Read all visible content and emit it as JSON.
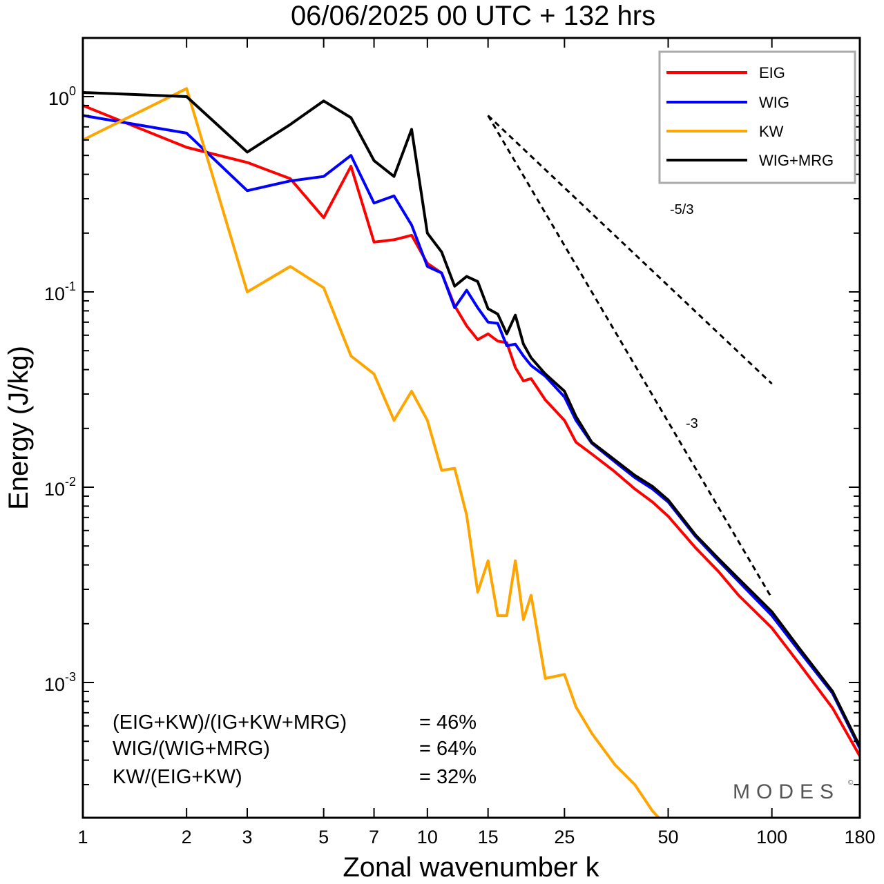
{
  "chart_data": {
    "type": "line",
    "title": "06/06/2025  00 UTC  + 132 hrs",
    "xlabel": "Zonal wavenumber k",
    "ylabel": "Energy (J/kg)",
    "xscale": "log",
    "yscale": "log",
    "xlim": [
      1,
      180
    ],
    "ylim": [
      0.0002,
      2.0
    ],
    "x_ticks": [
      1,
      2,
      3,
      5,
      7,
      10,
      15,
      25,
      50,
      100,
      180
    ],
    "y_ticks": [
      {
        "base": "10",
        "exp": "0",
        "value": 1
      },
      {
        "base": "10",
        "exp": "-1",
        "value": 0.1
      },
      {
        "base": "10",
        "exp": "-2",
        "value": 0.01
      },
      {
        "base": "10",
        "exp": "-3",
        "value": 0.001
      }
    ],
    "legend_position": "top-right",
    "series": [
      {
        "name": "EIG",
        "color": "#ff0000",
        "x": [
          1,
          2,
          3,
          4,
          5,
          6,
          7,
          8,
          9,
          10,
          11,
          12,
          13,
          14,
          15,
          16,
          17,
          18,
          19,
          20,
          22,
          25,
          27,
          30,
          35,
          40,
          45,
          50,
          60,
          70,
          80,
          100,
          120,
          150,
          180
        ],
        "y": [
          0.9,
          0.55,
          0.46,
          0.38,
          0.24,
          0.44,
          0.18,
          0.185,
          0.195,
          0.14,
          0.125,
          0.085,
          0.067,
          0.057,
          0.061,
          0.056,
          0.055,
          0.041,
          0.035,
          0.036,
          0.028,
          0.022,
          0.017,
          0.0148,
          0.012,
          0.0098,
          0.0084,
          0.0071,
          0.0049,
          0.0037,
          0.0028,
          0.0019,
          0.00125,
          0.00074,
          0.00042
        ]
      },
      {
        "name": "WIG",
        "color": "#0000ff",
        "x": [
          1,
          2,
          3,
          4,
          5,
          6,
          7,
          8,
          9,
          10,
          11,
          12,
          13,
          14,
          15,
          16,
          17,
          18,
          19,
          20,
          22,
          25,
          27,
          30,
          35,
          40,
          45,
          50,
          60,
          70,
          80,
          100,
          120,
          150,
          180
        ],
        "y": [
          0.8,
          0.65,
          0.33,
          0.37,
          0.39,
          0.5,
          0.285,
          0.31,
          0.22,
          0.135,
          0.125,
          0.083,
          0.102,
          0.083,
          0.07,
          0.069,
          0.053,
          0.054,
          0.047,
          0.042,
          0.037,
          0.029,
          0.022,
          0.0168,
          0.0135,
          0.0112,
          0.0098,
          0.0084,
          0.0056,
          0.0042,
          0.0033,
          0.0022,
          0.00145,
          0.00088,
          0.00046
        ]
      },
      {
        "name": "KW",
        "color": "#ffa500",
        "x": [
          1,
          2,
          3,
          4,
          5,
          6,
          7,
          8,
          9,
          10,
          11,
          12,
          13,
          14,
          15,
          16,
          17,
          18,
          19,
          20,
          22,
          25,
          27,
          30,
          35,
          40,
          45,
          50,
          60
        ],
        "y": [
          0.6,
          1.1,
          0.1,
          0.135,
          0.105,
          0.047,
          0.038,
          0.022,
          0.031,
          0.022,
          0.0122,
          0.0125,
          0.0072,
          0.0029,
          0.0042,
          0.0022,
          0.0022,
          0.0042,
          0.0021,
          0.0028,
          0.00105,
          0.0011,
          0.00075,
          0.00055,
          0.00038,
          0.0003,
          0.00022,
          0.00018,
          0.00016
        ]
      },
      {
        "name": "WIG+MRG",
        "color": "#000000",
        "x": [
          1,
          2,
          3,
          4,
          5,
          6,
          7,
          8,
          9,
          10,
          11,
          12,
          13,
          14,
          15,
          16,
          17,
          18,
          19,
          20,
          22,
          25,
          27,
          30,
          35,
          40,
          45,
          50,
          60,
          70,
          80,
          100,
          120,
          150,
          180
        ],
        "y": [
          1.05,
          1.0,
          0.52,
          0.72,
          0.95,
          0.78,
          0.47,
          0.39,
          0.68,
          0.2,
          0.16,
          0.107,
          0.12,
          0.113,
          0.082,
          0.077,
          0.061,
          0.076,
          0.054,
          0.046,
          0.038,
          0.031,
          0.023,
          0.017,
          0.0138,
          0.0115,
          0.0101,
          0.0086,
          0.0057,
          0.0043,
          0.0034,
          0.0023,
          0.0015,
          0.0009,
          0.00047
        ]
      }
    ],
    "reference_lines": [
      {
        "label": "-5/3",
        "slope": -1.6667,
        "x": [
          15,
          100
        ],
        "y_start": 0.8
      },
      {
        "label": "-3",
        "slope": -3,
        "x": [
          15,
          100
        ],
        "y_start": 0.8
      }
    ],
    "annotations": [
      {
        "label": "(EIG+KW)/(IG+KW+MRG)",
        "value": "= 46%"
      },
      {
        "label": "WIG/(WIG+MRG)",
        "value": "= 64%"
      },
      {
        "label": "KW/(EIG+KW)",
        "value": "= 32%"
      }
    ],
    "grid": false
  },
  "watermark": {
    "text": "MODES",
    "symbol": "©"
  }
}
